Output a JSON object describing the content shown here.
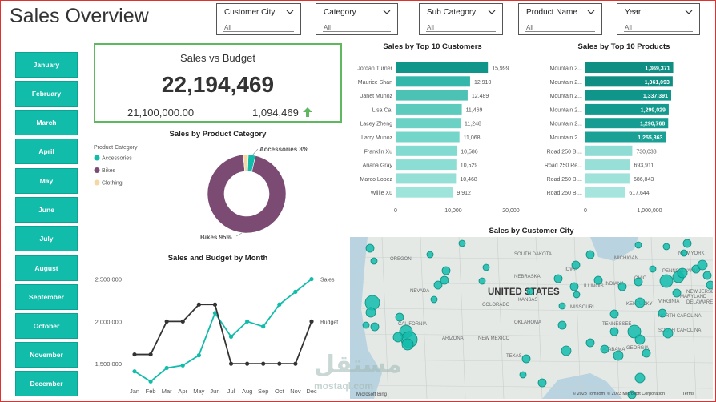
{
  "page_title": "Sales Overview",
  "slicers": [
    {
      "label": "Customer City",
      "value": "All"
    },
    {
      "label": "Category",
      "value": "All"
    },
    {
      "label": "Sub Category",
      "value": "All"
    },
    {
      "label": "Product Name",
      "value": "All"
    },
    {
      "label": "Year",
      "value": "All"
    }
  ],
  "months": [
    "January",
    "February",
    "March",
    "April",
    "May",
    "June",
    "July",
    "August",
    "September",
    "October",
    "November",
    "December"
  ],
  "kpi": {
    "title": "Sales vs Budget",
    "value": "22,194,469",
    "budget": "21,100,000.00",
    "difference": "1,094,469",
    "trend_icon": "arrow-up-icon",
    "trend_color": "#5fb760"
  },
  "colors": {
    "accent": "#12bcab",
    "bikes": "#7b4b73",
    "accessories": "#12bcab",
    "clothing": "#f3d8a3",
    "budget_line": "#333333"
  },
  "chart_data": [
    {
      "type": "bar",
      "title": "Sales by Top 10 Customers",
      "categories": [
        "Jordan Turner",
        "Maurice Shan",
        "Janet Munoz",
        "Lisa Cai",
        "Lacey Zheng",
        "Larry Munoz",
        "Franklin Xu",
        "Ariana Gray",
        "Marco Lopez",
        "Willie Xu"
      ],
      "values": [
        15999,
        12910,
        12489,
        11469,
        11248,
        11068,
        10586,
        10529,
        10468,
        9912
      ],
      "labels": [
        "15,999",
        "12,910",
        "12,489",
        "11,469",
        "11,248",
        "11,068",
        "10,586",
        "10,529",
        "10,468",
        "9,912"
      ],
      "xticks": [
        "0",
        "10,000",
        "20,000"
      ],
      "xlim": [
        0,
        20000
      ]
    },
    {
      "type": "bar",
      "title": "Sales by Top 10 Products",
      "categories": [
        "Mountain 2...",
        "Mountain 2...",
        "Mountain 2...",
        "Mountain 2...",
        "Mountain 2...",
        "Mountain 2...",
        "Road 250 Bl...",
        "Road 250 Re...",
        "Road 250 Bl...",
        "Road 250 Bl..."
      ],
      "values": [
        1369371,
        1361093,
        1337391,
        1299029,
        1290768,
        1255363,
        730038,
        693911,
        686843,
        617644
      ],
      "labels": [
        "1,369,371",
        "1,361,093",
        "1,337,391",
        "1,299,029",
        "1,290,768",
        "1,255,363",
        "730,038",
        "693,911",
        "686,843",
        "617,644"
      ],
      "xticks": [
        "0",
        "1,000,000"
      ],
      "xlim": [
        0,
        1500000
      ]
    },
    {
      "type": "pie",
      "title": "Sales by Product Category",
      "legend_title": "Product Category",
      "legend": [
        "Accessories",
        "Bikes",
        "Clothing"
      ],
      "slices": [
        {
          "name": "Accessories",
          "value": 3
        },
        {
          "name": "Bikes",
          "value": 95
        },
        {
          "name": "Clothing",
          "value": 2
        }
      ],
      "annotations": [
        "Accessories 3%",
        "Bikes 95%"
      ]
    },
    {
      "type": "line",
      "title": "Sales and Budget by Month",
      "categories": [
        "Jan",
        "Feb",
        "Mar",
        "Apr",
        "May",
        "Jun",
        "Jul",
        "Aug",
        "Sep",
        "Oct",
        "Nov",
        "Dec"
      ],
      "yticks": [
        "2,500,000",
        "2,000,000",
        "1,500,000"
      ],
      "ylim": [
        1350000,
        2600000
      ],
      "series": [
        {
          "name": "Sales",
          "values": [
            1410000,
            1290000,
            1450000,
            1480000,
            1600000,
            2100000,
            1820000,
            2000000,
            1940000,
            2200000,
            2350000,
            2500000
          ]
        },
        {
          "name": "Budget",
          "values": [
            1610000,
            1610000,
            2000000,
            2000000,
            2200000,
            2200000,
            1500000,
            1500000,
            1500000,
            1500000,
            1500000,
            2000000
          ]
        }
      ]
    }
  ],
  "map": {
    "title": "Sales by Customer City",
    "country_label": "UNITED STATES",
    "state_labels": [
      "OREGON",
      "NEVADA",
      "CALIFORNIA",
      "ARIZONA",
      "NEW MEXICO",
      "SOUTH DAKOTA",
      "NEBRASKA",
      "KANSAS",
      "COLORADO",
      "OKLAHOMA",
      "TEXAS",
      "IOWA",
      "ILLINOIS",
      "MISSOURI",
      "TENNESSEE",
      "ALABAMA",
      "GEORGIA",
      "MICHIGAN",
      "PENNSYLVANIA",
      "OHIO",
      "KENTUCKY",
      "VIRGINIA",
      "NEW YORK",
      "NEW JERSEY",
      "MARYLAND",
      "DELAWARE",
      "NORTH CAROLINA",
      "SOUTH CAROLINA",
      "INDIANA"
    ],
    "attribution": "© 2023 TomTom, © 2023 Microsoft Corporation",
    "terms": "Terms",
    "bing": "Microsoft Bing"
  },
  "watermark": "مستقل",
  "watermark_sub": "mostaql.com"
}
